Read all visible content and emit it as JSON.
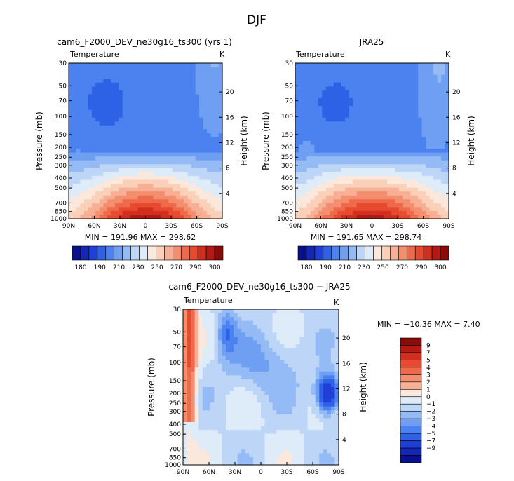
{
  "figure": {
    "title": "DJF"
  },
  "palettes": {
    "abs": [
      "#08108c",
      "#1327b4",
      "#1f3fd6",
      "#2e62e6",
      "#4c82f0",
      "#6f9ff3",
      "#94bbf5",
      "#bdd6f7",
      "#deebf9",
      "#fbe8dc",
      "#fbd0b8",
      "#f7b095",
      "#f38e6f",
      "#ef6a4b",
      "#e74a2e",
      "#d22e1f",
      "#b41a14",
      "#8c0a0a"
    ],
    "diff": [
      "#08108c",
      "#1327b4",
      "#1f3fd6",
      "#2e62e6",
      "#4c82f0",
      "#6f9ff3",
      "#94bbf5",
      "#bdd6f7",
      "#deebf9",
      "#fbe8dc",
      "#f7b095",
      "#f38e6f",
      "#ef6a4b",
      "#e74a2e",
      "#d22e1f",
      "#b41a14",
      "#8c0a0a"
    ]
  },
  "chart_data": [
    {
      "type": "heatmap",
      "title": "cam6_F2000_DEV_ne30g16_ts300 (yrs 1)",
      "subtitle": "Temperature",
      "units": "K",
      "ylabel": "Pressure (mb)",
      "ylabel_right": "Height (km)",
      "x_ticks": [
        "90N",
        "60N",
        "30N",
        "0",
        "30S",
        "60S",
        "90S"
      ],
      "y_ticks": [
        "30",
        "50",
        "70",
        "100",
        "150",
        "200",
        "250",
        "300",
        "400",
        "500",
        "700",
        "850",
        "1000"
      ],
      "y_ticks_right": [
        "20",
        "16",
        "12",
        "8",
        "4"
      ],
      "stats": "MIN = 191.96   MAX = 298.62",
      "min": 191.96,
      "max": 298.62
    },
    {
      "type": "heatmap",
      "title": "JRA25",
      "subtitle": "Temperature",
      "units": "K",
      "ylabel": "Pressure (mb)",
      "ylabel_right": "Height (km)",
      "x_ticks": [
        "90N",
        "60N",
        "30N",
        "0",
        "30S",
        "60S",
        "90S"
      ],
      "y_ticks": [
        "30",
        "50",
        "70",
        "100",
        "150",
        "200",
        "250",
        "300",
        "400",
        "500",
        "700",
        "850",
        "1000"
      ],
      "y_ticks_right": [
        "20",
        "16",
        "12",
        "8",
        "4"
      ],
      "stats": "MIN = 191.65   MAX = 298.74",
      "min": 191.65,
      "max": 298.74
    },
    {
      "type": "heatmap",
      "title": "cam6_F2000_DEV_ne30g16_ts300 − JRA25",
      "subtitle": "Temperature",
      "units": "K",
      "ylabel": "Pressure (mb)",
      "ylabel_right": "Height (km)",
      "x_ticks": [
        "90N",
        "60N",
        "30N",
        "0",
        "30S",
        "60S",
        "90S"
      ],
      "y_ticks": [
        "30",
        "50",
        "70",
        "100",
        "150",
        "200",
        "250",
        "300",
        "400",
        "500",
        "700",
        "850",
        "1000"
      ],
      "y_ticks_right": [
        "20",
        "16",
        "12",
        "8",
        "4"
      ],
      "stats": "MIN = −10.36   MAX =    7.40",
      "min": -10.36,
      "max": 7.4
    }
  ],
  "colorbars": {
    "abs": {
      "labels": [
        "180",
        "190",
        "210",
        "230",
        "250",
        "270",
        "290",
        "300"
      ]
    },
    "diff": {
      "labels": [
        "9",
        "7",
        "5",
        "4",
        "3",
        "2",
        "1",
        "0",
        "−1",
        "−2",
        "−3",
        "−4",
        "−5",
        "−7",
        "−9"
      ]
    }
  }
}
